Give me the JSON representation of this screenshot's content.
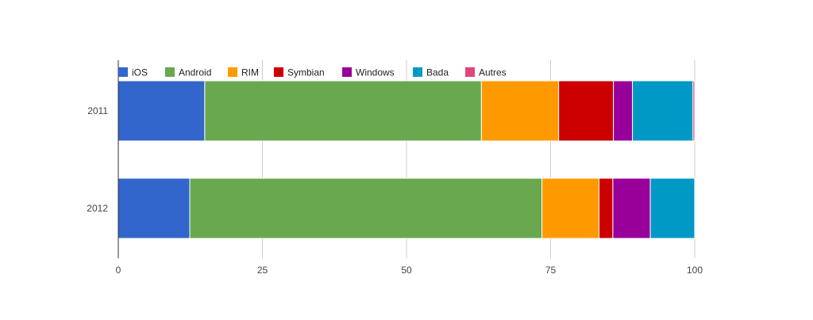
{
  "chart_data": {
    "type": "bar",
    "orientation": "horizontal",
    "stacked": true,
    "categories": [
      "2011",
      "2012"
    ],
    "series": [
      {
        "name": "iOS",
        "color": "#3366CC",
        "values": [
          15.0,
          12.4
        ]
      },
      {
        "name": "Android",
        "color": "#6AA84F",
        "values": [
          48.0,
          61.1
        ]
      },
      {
        "name": "RIM",
        "color": "#FF9900",
        "values": [
          13.4,
          9.9
        ]
      },
      {
        "name": "Symbian",
        "color": "#CC0000",
        "values": [
          9.5,
          2.4
        ]
      },
      {
        "name": "Windows",
        "color": "#990099",
        "values": [
          3.3,
          6.5
        ]
      },
      {
        "name": "Bada",
        "color": "#0099C6",
        "values": [
          10.5,
          7.7
        ]
      },
      {
        "name": "Autres",
        "color": "#E0457B",
        "values": [
          0.3,
          0.0
        ]
      }
    ],
    "xlim": [
      0,
      100
    ],
    "xticks": [
      0,
      25,
      50,
      75,
      100
    ],
    "grid": true,
    "legend": "top-left",
    "title": "",
    "xlabel": "",
    "ylabel": ""
  }
}
